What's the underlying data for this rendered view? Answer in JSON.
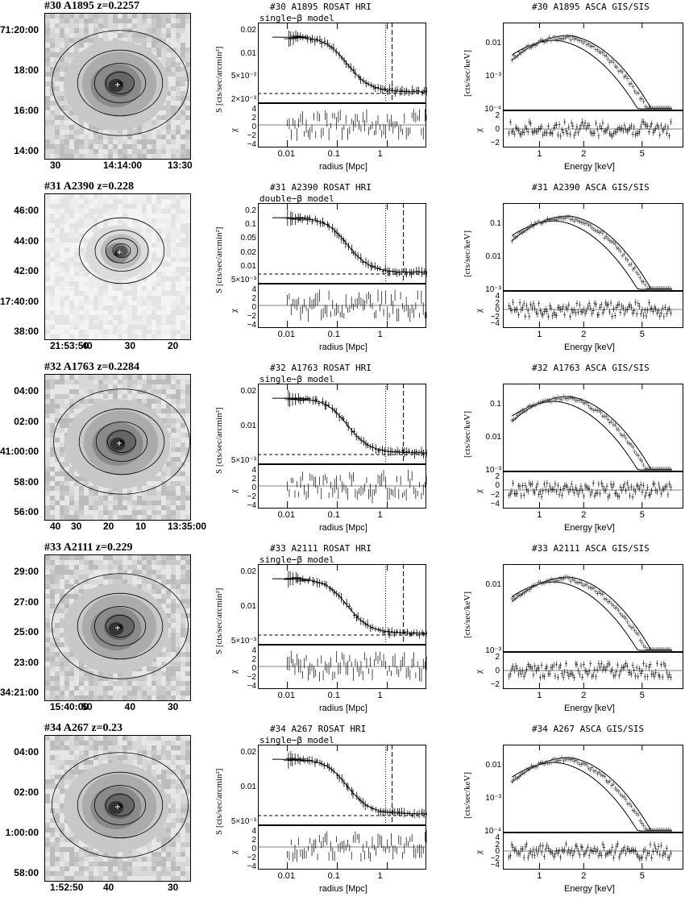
{
  "rows": [
    {
      "image": {
        "title": "#30 A1895 z=0.2257",
        "y_ticks": [
          "71:20:00",
          "18:00",
          "16:00",
          "14:00"
        ],
        "x_ticks": [
          "30",
          "14:14:00",
          "13:30"
        ]
      },
      "profile": {
        "title": "#30 A1895 ROSAT HRI",
        "model": "single−β model",
        "y_ticks": [
          "0.02",
          "0.01",
          "5×10⁻³",
          "2×10⁻³"
        ]
      },
      "spectrum": {
        "title": "#30 A1895 ASCA GIS/SIS",
        "y_ticks": [
          "0.01",
          "10⁻³",
          "10⁻⁴"
        ],
        "chi_ticks": [
          "2",
          "0",
          "−2"
        ]
      }
    },
    {
      "image": {
        "title": "#31 A2390 z=0.228",
        "y_ticks": [
          "46:00",
          "44:00",
          "42:00",
          "17:40:00",
          "38:00"
        ],
        "x_ticks": [
          "21:53:50",
          "40",
          "30",
          "20"
        ]
      },
      "profile": {
        "title": "#31 A2390 ROSAT HRI",
        "model": "double−β model",
        "y_ticks": [
          "0.2",
          "0.1",
          "0.05",
          "0.02",
          "0.01",
          "5×10⁻³"
        ]
      },
      "spectrum": {
        "title": "#31 A2390 ASCA GIS/SIS",
        "y_ticks": [
          "0.1",
          "0.01",
          "10⁻³"
        ],
        "chi_ticks": [
          "4",
          "2",
          "0",
          "−2",
          "−4"
        ]
      }
    },
    {
      "image": {
        "title": "#32 A1763 z=0.2284",
        "y_ticks": [
          "04:00",
          "02:00",
          "41:00:00",
          "58:00",
          "56:00"
        ],
        "x_ticks": [
          "40",
          "30",
          "20",
          "10",
          "13:35:00"
        ]
      },
      "profile": {
        "title": "#32 A1763 ROSAT HRI",
        "model": "single−β model",
        "y_ticks": [
          "0.02",
          "0.01",
          "5×10⁻³"
        ]
      },
      "spectrum": {
        "title": "#32 A1763 ASCA GIS/SIS",
        "y_ticks": [
          "0.1",
          "0.01",
          "10⁻³"
        ],
        "chi_ticks": [
          "2",
          "0",
          "−2",
          "−4"
        ]
      }
    },
    {
      "image": {
        "title": "#33 A2111 z=0.229",
        "y_ticks": [
          "29:00",
          "27:00",
          "25:00",
          "23:00",
          "34:21:00"
        ],
        "x_ticks": [
          "15:40:00",
          "50",
          "40",
          "30"
        ]
      },
      "profile": {
        "title": "#33 A2111 ROSAT HRI",
        "model": "single−β model",
        "y_ticks": [
          "0.02",
          "0.01",
          "5×10⁻³"
        ]
      },
      "spectrum": {
        "title": "#33 A2111 ASCA GIS/SIS",
        "y_ticks": [
          "0.01",
          "10⁻³"
        ],
        "chi_ticks": [
          "2",
          "0",
          "−2"
        ]
      }
    },
    {
      "image": {
        "title": "#34 A267 z=0.23",
        "y_ticks": [
          "04:00",
          "02:00",
          "1:00:00",
          "58:00"
        ],
        "x_ticks": [
          "1:52:50",
          "40",
          "30"
        ]
      },
      "profile": {
        "title": "#34 A267 ROSAT HRI",
        "model": "single−β model",
        "y_ticks": [
          "0.02",
          "0.01",
          "5×10⁻³"
        ]
      },
      "spectrum": {
        "title": "#34 A267 ASCA GIS/SIS",
        "y_ticks": [
          "0.01",
          "10⁻³",
          "10⁻⁴"
        ],
        "chi_ticks": [
          "4",
          "2",
          "0",
          "−2",
          "−4"
        ]
      }
    }
  ],
  "profile_axes": {
    "ylabel": "S [cts/sec/arcmin²]",
    "chi_label": "χ",
    "chi_ticks": [
      "4",
      "2",
      "0",
      "−2",
      "−4"
    ],
    "x_ticks": [
      "0.01",
      "0.1",
      "1"
    ],
    "xlabel": "radius [Mpc]"
  },
  "spectrum_axes": {
    "ylabel": "[cts/sec/keV]",
    "chi_label": "χ",
    "x_ticks": [
      "1",
      "2",
      "5"
    ],
    "xlabel": "Energy [keV]"
  }
}
